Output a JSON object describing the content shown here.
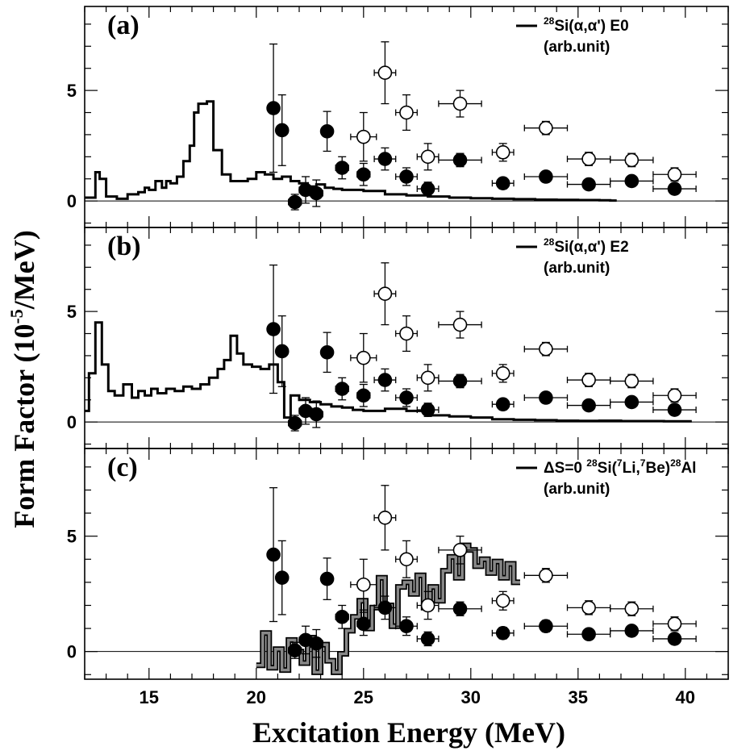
{
  "figure": {
    "xlabel": "Excitation Energy (MeV)",
    "ylabel": "Form Factor (10-5/MeV)",
    "ylabel_main": "Form Factor (10",
    "ylabel_sup": "-5",
    "ylabel_tail": "/MeV)"
  },
  "chart_data": [
    {
      "type": "line",
      "panel": "(a)",
      "legend": {
        "sup1": "28",
        "text1": "Si(α,α') E0",
        "line2": "(arb.unit)",
        "placement": "top-right"
      },
      "xlim": [
        12,
        42
      ],
      "ylim": [
        -1.2,
        8.8
      ],
      "xticks": [
        15,
        20,
        25,
        30,
        35,
        40
      ],
      "xtick_labels": [
        "15",
        "20",
        "25",
        "30",
        "35",
        "40"
      ],
      "yticks": [
        0,
        5
      ],
      "ytick_labels": [
        "0",
        "5"
      ],
      "curve": {
        "style": "step",
        "x": [
          12.0,
          12.5,
          12.7,
          13.0,
          13.5,
          14.0,
          14.5,
          14.8,
          15.0,
          15.3,
          15.6,
          15.8,
          16.0,
          16.3,
          16.6,
          16.9,
          17.1,
          17.3,
          17.7,
          18.0,
          18.4,
          18.8,
          19.2,
          19.6,
          20.0,
          20.4,
          20.8,
          21.2,
          21.6,
          22.0,
          22.4,
          22.8,
          23.2,
          23.6,
          24.0,
          25.0,
          26.0,
          27.0,
          28.0,
          29.0,
          30.0,
          31.0,
          32.0,
          33.0,
          34.0,
          35.0,
          36.0,
          36.5
        ],
        "y": [
          0.15,
          1.3,
          1.0,
          0.2,
          0.1,
          0.3,
          0.4,
          0.6,
          0.5,
          0.9,
          0.6,
          0.9,
          0.8,
          1.1,
          1.8,
          2.5,
          4.0,
          4.4,
          4.5,
          2.3,
          1.2,
          0.9,
          0.9,
          1.0,
          1.3,
          1.2,
          1.0,
          1.1,
          0.9,
          0.8,
          0.65,
          0.75,
          0.6,
          0.55,
          0.5,
          0.45,
          0.3,
          0.25,
          0.2,
          0.15,
          0.12,
          0.1,
          0.08,
          0.06,
          0.05,
          0.04,
          0.03,
          0.02
        ]
      },
      "open_points": [
        {
          "x": 25.0,
          "y": 2.9,
          "xerr": 0.6,
          "yerr": 1.1
        },
        {
          "x": 26.0,
          "y": 5.8,
          "xerr": 0.5,
          "yerr": 1.4
        },
        {
          "x": 27.0,
          "y": 4.0,
          "xerr": 0.5,
          "yerr": 0.8
        },
        {
          "x": 28.0,
          "y": 2.0,
          "xerr": 0.5,
          "yerr": 0.6
        },
        {
          "x": 29.5,
          "y": 4.4,
          "xerr": 1.0,
          "yerr": 0.6
        },
        {
          "x": 31.5,
          "y": 2.2,
          "xerr": 0.5,
          "yerr": 0.4
        },
        {
          "x": 33.5,
          "y": 3.3,
          "xerr": 1.0,
          "yerr": 0.3
        },
        {
          "x": 35.5,
          "y": 1.9,
          "xerr": 1.0,
          "yerr": 0.3
        },
        {
          "x": 37.5,
          "y": 1.85,
          "xerr": 1.0,
          "yerr": 0.3
        },
        {
          "x": 39.5,
          "y": 1.2,
          "xerr": 1.0,
          "yerr": 0.3
        }
      ],
      "filled_points": [
        {
          "x": 20.8,
          "y": 4.2,
          "xerr": 0.0,
          "yerr": 2.9
        },
        {
          "x": 21.2,
          "y": 3.2,
          "xerr": 0.0,
          "yerr": 1.6
        },
        {
          "x": 21.8,
          "y": -0.05,
          "xerr": 0.3,
          "yerr": 0.35
        },
        {
          "x": 22.3,
          "y": 0.5,
          "xerr": 0.3,
          "yerr": 0.6
        },
        {
          "x": 22.8,
          "y": 0.35,
          "xerr": 0.3,
          "yerr": 0.6
        },
        {
          "x": 23.3,
          "y": 3.15,
          "xerr": 0.0,
          "yerr": 0.9
        },
        {
          "x": 24.0,
          "y": 1.5,
          "xerr": 0.3,
          "yerr": 0.5
        },
        {
          "x": 25.0,
          "y": 1.2,
          "xerr": 0.3,
          "yerr": 0.5
        },
        {
          "x": 26.0,
          "y": 1.9,
          "xerr": 0.5,
          "yerr": 0.5
        },
        {
          "x": 27.0,
          "y": 1.1,
          "xerr": 0.5,
          "yerr": 0.4
        },
        {
          "x": 28.0,
          "y": 0.55,
          "xerr": 0.5,
          "yerr": 0.3
        },
        {
          "x": 29.5,
          "y": 1.85,
          "xerr": 1.0,
          "yerr": 0.3
        },
        {
          "x": 31.5,
          "y": 0.8,
          "xerr": 0.5,
          "yerr": 0.25
        },
        {
          "x": 33.5,
          "y": 1.1,
          "xerr": 1.0,
          "yerr": 0.25
        },
        {
          "x": 35.5,
          "y": 0.75,
          "xerr": 1.0,
          "yerr": 0.2
        },
        {
          "x": 37.5,
          "y": 0.9,
          "xerr": 1.0,
          "yerr": 0.2
        },
        {
          "x": 39.5,
          "y": 0.55,
          "xerr": 1.0,
          "yerr": 0.2
        }
      ]
    },
    {
      "type": "line",
      "panel": "(b)",
      "legend": {
        "sup1": "28",
        "text1": "Si(α,α') E2",
        "line2": "(arb.unit)",
        "placement": "top-right"
      },
      "xlim": [
        12,
        42
      ],
      "ylim": [
        -1.2,
        8.8
      ],
      "xticks": [
        15,
        20,
        25,
        30,
        35,
        40
      ],
      "xtick_labels": [
        "15",
        "20",
        "25",
        "30",
        "35",
        "40"
      ],
      "yticks": [
        0,
        5
      ],
      "ytick_labels": [
        "0",
        "5"
      ],
      "curve": {
        "style": "step",
        "x": [
          12.0,
          12.2,
          12.5,
          12.8,
          13.1,
          13.4,
          13.8,
          14.2,
          14.5,
          14.8,
          15.1,
          15.4,
          15.8,
          16.2,
          16.6,
          17.0,
          17.4,
          17.8,
          18.2,
          18.5,
          18.8,
          19.1,
          19.4,
          19.8,
          20.2,
          20.6,
          21.0,
          21.3,
          21.6,
          22.0,
          22.5,
          23.0,
          23.5,
          24.0,
          24.5,
          25.0,
          26.0,
          27.0,
          28.0,
          29.0,
          30.0,
          31.0,
          32.0,
          33.0,
          34.0,
          35.0,
          36.0,
          37.0,
          38.0,
          39.0,
          40.0
        ],
        "y": [
          0.5,
          2.2,
          4.5,
          2.6,
          1.4,
          1.2,
          1.7,
          1.1,
          1.4,
          1.2,
          1.5,
          1.3,
          1.5,
          1.4,
          1.6,
          1.5,
          1.7,
          2.0,
          2.4,
          2.8,
          3.9,
          3.1,
          2.6,
          2.5,
          2.4,
          2.6,
          1.8,
          0.2,
          1.2,
          1.0,
          0.9,
          0.8,
          0.7,
          0.65,
          0.55,
          0.5,
          0.6,
          0.5,
          0.3,
          0.25,
          0.2,
          0.12,
          0.1,
          0.08,
          0.06,
          0.05,
          0.06,
          0.04,
          0.04,
          0.03,
          0.03
        ]
      },
      "open_points": [
        {
          "x": 25.0,
          "y": 2.9,
          "xerr": 0.6,
          "yerr": 1.1
        },
        {
          "x": 26.0,
          "y": 5.8,
          "xerr": 0.5,
          "yerr": 1.4
        },
        {
          "x": 27.0,
          "y": 4.0,
          "xerr": 0.5,
          "yerr": 0.8
        },
        {
          "x": 28.0,
          "y": 2.0,
          "xerr": 0.5,
          "yerr": 0.6
        },
        {
          "x": 29.5,
          "y": 4.4,
          "xerr": 1.0,
          "yerr": 0.6
        },
        {
          "x": 31.5,
          "y": 2.2,
          "xerr": 0.5,
          "yerr": 0.4
        },
        {
          "x": 33.5,
          "y": 3.3,
          "xerr": 1.0,
          "yerr": 0.3
        },
        {
          "x": 35.5,
          "y": 1.9,
          "xerr": 1.0,
          "yerr": 0.3
        },
        {
          "x": 37.5,
          "y": 1.85,
          "xerr": 1.0,
          "yerr": 0.3
        },
        {
          "x": 39.5,
          "y": 1.2,
          "xerr": 1.0,
          "yerr": 0.3
        }
      ],
      "filled_points": [
        {
          "x": 20.8,
          "y": 4.2,
          "xerr": 0.0,
          "yerr": 2.9
        },
        {
          "x": 21.2,
          "y": 3.2,
          "xerr": 0.0,
          "yerr": 1.6
        },
        {
          "x": 21.8,
          "y": -0.05,
          "xerr": 0.3,
          "yerr": 0.35
        },
        {
          "x": 22.3,
          "y": 0.5,
          "xerr": 0.3,
          "yerr": 0.6
        },
        {
          "x": 22.8,
          "y": 0.35,
          "xerr": 0.3,
          "yerr": 0.6
        },
        {
          "x": 23.3,
          "y": 3.15,
          "xerr": 0.0,
          "yerr": 0.9
        },
        {
          "x": 24.0,
          "y": 1.5,
          "xerr": 0.3,
          "yerr": 0.5
        },
        {
          "x": 25.0,
          "y": 1.2,
          "xerr": 0.3,
          "yerr": 0.5
        },
        {
          "x": 26.0,
          "y": 1.9,
          "xerr": 0.5,
          "yerr": 0.5
        },
        {
          "x": 27.0,
          "y": 1.1,
          "xerr": 0.5,
          "yerr": 0.4
        },
        {
          "x": 28.0,
          "y": 0.55,
          "xerr": 0.5,
          "yerr": 0.3
        },
        {
          "x": 29.5,
          "y": 1.85,
          "xerr": 1.0,
          "yerr": 0.3
        },
        {
          "x": 31.5,
          "y": 0.8,
          "xerr": 0.5,
          "yerr": 0.25
        },
        {
          "x": 33.5,
          "y": 1.1,
          "xerr": 1.0,
          "yerr": 0.25
        },
        {
          "x": 35.5,
          "y": 0.75,
          "xerr": 1.0,
          "yerr": 0.2
        },
        {
          "x": 37.5,
          "y": 0.9,
          "xerr": 1.0,
          "yerr": 0.2
        },
        {
          "x": 39.5,
          "y": 0.55,
          "xerr": 1.0,
          "yerr": 0.2
        }
      ]
    },
    {
      "type": "line",
      "panel": "(c)",
      "legend": {
        "pre1": "ΔS=0 ",
        "sup1": "28",
        "text1a": "Si(",
        "sup2": "7",
        "text1b": "Li,",
        "sup3": "7",
        "text1c": "Be)",
        "sup4": "28",
        "text1d": "Al",
        "line2": "(arb.unit)",
        "placement": "top-right"
      },
      "xlim": [
        12,
        42
      ],
      "ylim": [
        -1.2,
        8.8
      ],
      "xticks": [
        15,
        20,
        25,
        30,
        35,
        40
      ],
      "xtick_labels": [
        "15",
        "20",
        "25",
        "30",
        "35",
        "40"
      ],
      "yticks": [
        0,
        5
      ],
      "ytick_labels": [
        "0",
        "5"
      ],
      "curve": {
        "style": "step-band",
        "x": [
          20.0,
          20.3,
          20.6,
          20.9,
          21.2,
          21.5,
          21.8,
          22.1,
          22.4,
          22.7,
          23.0,
          23.3,
          23.6,
          23.9,
          24.2,
          24.5,
          24.8,
          25.1,
          25.4,
          25.7,
          26.0,
          26.3,
          26.6,
          26.9,
          27.2,
          27.5,
          27.8,
          28.1,
          28.4,
          28.7,
          29.0,
          29.3,
          29.6,
          29.9,
          30.2,
          30.5,
          30.8,
          31.1,
          31.4,
          31.7,
          32.0
        ],
        "y": [
          -0.6,
          0.8,
          -0.7,
          0.1,
          -0.8,
          0.5,
          0.0,
          -0.5,
          0.6,
          -0.9,
          0.3,
          -0.4,
          -0.9,
          -0.1,
          0.9,
          1.5,
          2.2,
          1.0,
          1.9,
          3.2,
          2.0,
          1.1,
          2.8,
          3.0,
          2.5,
          3.3,
          1.9,
          2.8,
          2.2,
          3.5,
          4.1,
          3.2,
          4.6,
          4.4,
          3.7,
          4.0,
          3.4,
          3.9,
          3.2,
          3.8,
          3.0
        ]
      },
      "open_points": [
        {
          "x": 25.0,
          "y": 2.9,
          "xerr": 0.6,
          "yerr": 1.1
        },
        {
          "x": 26.0,
          "y": 5.8,
          "xerr": 0.5,
          "yerr": 1.4
        },
        {
          "x": 27.0,
          "y": 4.0,
          "xerr": 0.5,
          "yerr": 0.8
        },
        {
          "x": 28.0,
          "y": 2.0,
          "xerr": 0.5,
          "yerr": 0.6
        },
        {
          "x": 29.5,
          "y": 4.4,
          "xerr": 1.0,
          "yerr": 0.6
        },
        {
          "x": 31.5,
          "y": 2.2,
          "xerr": 0.5,
          "yerr": 0.4
        },
        {
          "x": 33.5,
          "y": 3.3,
          "xerr": 1.0,
          "yerr": 0.3
        },
        {
          "x": 35.5,
          "y": 1.9,
          "xerr": 1.0,
          "yerr": 0.3
        },
        {
          "x": 37.5,
          "y": 1.85,
          "xerr": 1.0,
          "yerr": 0.3
        },
        {
          "x": 39.5,
          "y": 1.2,
          "xerr": 1.0,
          "yerr": 0.3
        }
      ],
      "filled_points": [
        {
          "x": 20.8,
          "y": 4.2,
          "xerr": 0.0,
          "yerr": 2.9
        },
        {
          "x": 21.2,
          "y": 3.2,
          "xerr": 0.0,
          "yerr": 1.6
        },
        {
          "x": 21.8,
          "y": 0.05,
          "xerr": 0.3,
          "yerr": 0.35
        },
        {
          "x": 22.3,
          "y": 0.5,
          "xerr": 0.3,
          "yerr": 0.6
        },
        {
          "x": 22.8,
          "y": 0.35,
          "xerr": 0.3,
          "yerr": 0.6
        },
        {
          "x": 23.3,
          "y": 3.15,
          "xerr": 0.0,
          "yerr": 0.9
        },
        {
          "x": 24.0,
          "y": 1.5,
          "xerr": 0.3,
          "yerr": 0.5
        },
        {
          "x": 25.0,
          "y": 1.2,
          "xerr": 0.3,
          "yerr": 0.5
        },
        {
          "x": 26.0,
          "y": 1.9,
          "xerr": 0.5,
          "yerr": 0.5
        },
        {
          "x": 27.0,
          "y": 1.1,
          "xerr": 0.5,
          "yerr": 0.4
        },
        {
          "x": 28.0,
          "y": 0.55,
          "xerr": 0.5,
          "yerr": 0.3
        },
        {
          "x": 29.5,
          "y": 1.85,
          "xerr": 1.0,
          "yerr": 0.3
        },
        {
          "x": 31.5,
          "y": 0.8,
          "xerr": 0.5,
          "yerr": 0.25
        },
        {
          "x": 33.5,
          "y": 1.1,
          "xerr": 1.0,
          "yerr": 0.25
        },
        {
          "x": 35.5,
          "y": 0.75,
          "xerr": 1.0,
          "yerr": 0.2
        },
        {
          "x": 37.5,
          "y": 0.9,
          "xerr": 1.0,
          "yerr": 0.2
        },
        {
          "x": 39.5,
          "y": 0.55,
          "xerr": 1.0,
          "yerr": 0.2
        }
      ]
    }
  ]
}
